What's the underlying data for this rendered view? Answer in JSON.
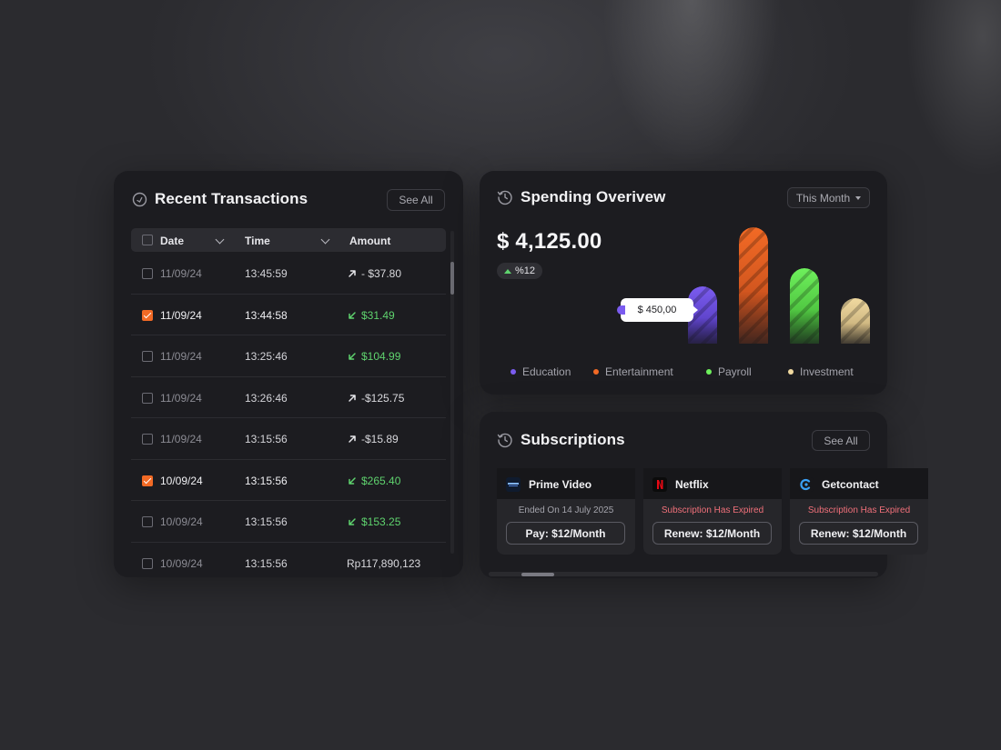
{
  "transactions": {
    "title": "Recent Transactions",
    "see_all": "See All",
    "columns": {
      "date": "Date",
      "time": "Time",
      "amount": "Amount"
    },
    "rows": [
      {
        "date": "11/09/24",
        "time": "13:45:59",
        "amount": "- $37.80",
        "direction": "out",
        "checked": false
      },
      {
        "date": "11/09/24",
        "time": "13:44:58",
        "amount": "$31.49",
        "direction": "in",
        "checked": true
      },
      {
        "date": "11/09/24",
        "time": "13:25:46",
        "amount": "$104.99",
        "direction": "in",
        "checked": false
      },
      {
        "date": "11/09/24",
        "time": "13:26:46",
        "amount": "-$125.75",
        "direction": "out",
        "checked": false
      },
      {
        "date": "11/09/24",
        "time": "13:15:56",
        "amount": "-$15.89",
        "direction": "out",
        "checked": false
      },
      {
        "date": "10/09/24",
        "time": "13:15:56",
        "amount": "$265.40",
        "direction": "in",
        "checked": true
      },
      {
        "date": "10/09/24",
        "time": "13:15:56",
        "amount": "$153.25",
        "direction": "in",
        "checked": false
      },
      {
        "date": "10/09/24",
        "time": "13:15:56",
        "amount": "Rp117,890,123",
        "direction": "none",
        "checked": false
      }
    ]
  },
  "spending": {
    "title": "Spending Overivew",
    "period": "This Month",
    "total": "$ 4,125.00",
    "change": "%12",
    "tooltip": "$ 450,00",
    "bars": [
      {
        "name": "Education",
        "value": 0.49,
        "color": "#7b5cf0",
        "color2": "#4b33b0"
      },
      {
        "name": "Entertainment",
        "value": 1.0,
        "color": "#f26a25",
        "color2": "#b8461a"
      },
      {
        "name": "Payroll",
        "value": 0.65,
        "color": "#6ef05c",
        "color2": "#3aa82e"
      },
      {
        "name": "Investment",
        "value": 0.39,
        "color": "#f0d9a0",
        "color2": "#b8a06c"
      }
    ],
    "legend": [
      {
        "label": "Education",
        "color": "#7b5cf0"
      },
      {
        "label": "Entertainment",
        "color": "#f26a25"
      },
      {
        "label": "Payroll",
        "color": "#6ef05c"
      },
      {
        "label": "Investment",
        "color": "#f0d9a0"
      }
    ]
  },
  "subscriptions": {
    "title": "Subscriptions",
    "see_all": "See All",
    "items": [
      {
        "name": "Prime Video",
        "status": "Ended On 14 July 2025",
        "expired": false,
        "action": "Pay: $12/Month",
        "icon": "prime-video-icon"
      },
      {
        "name": "Netflix",
        "status": "Subscription Has Expired",
        "expired": true,
        "action": "Renew: $12/Month",
        "icon": "netflix-icon"
      },
      {
        "name": "Getcontact",
        "status": "Subscription Has Expired",
        "expired": true,
        "action": "Renew: $12/Month",
        "icon": "getcontact-icon"
      }
    ]
  }
}
